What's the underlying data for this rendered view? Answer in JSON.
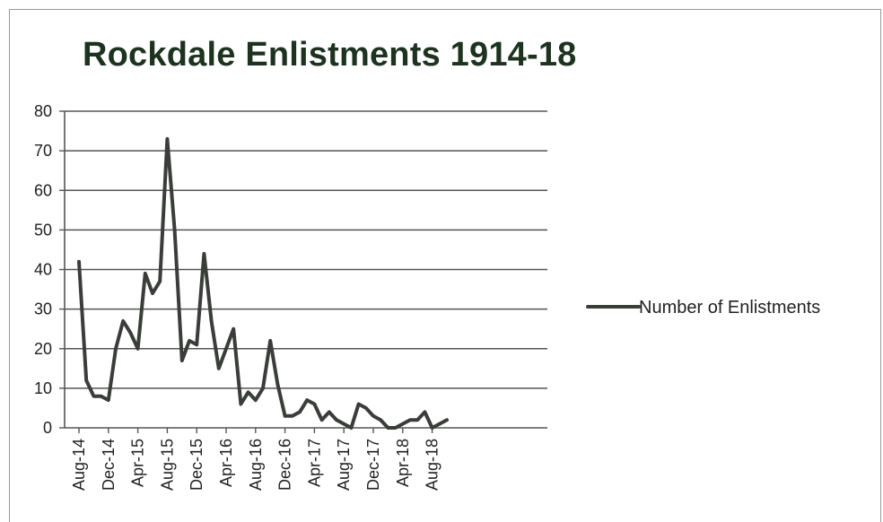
{
  "chart_data": {
    "type": "line",
    "title": "Rockdale Enlistments 1914-18",
    "xlabel": "",
    "ylabel": "",
    "ylim": [
      0,
      80
    ],
    "y_ticks": [
      0,
      10,
      20,
      30,
      40,
      50,
      60,
      70,
      80
    ],
    "x_tick_labels": [
      "Aug-14",
      "Dec-14",
      "Apr-15",
      "Aug-15",
      "Dec-15",
      "Apr-16",
      "Aug-16",
      "Dec-16",
      "Apr-17",
      "Aug-17",
      "Dec-17",
      "Apr-18",
      "Aug-18"
    ],
    "x": [
      "Aug-14",
      "Sep-14",
      "Oct-14",
      "Nov-14",
      "Dec-14",
      "Jan-15",
      "Feb-15",
      "Mar-15",
      "Apr-15",
      "May-15",
      "Jun-15",
      "Jul-15",
      "Aug-15",
      "Sep-15",
      "Oct-15",
      "Nov-15",
      "Dec-15",
      "Jan-16",
      "Feb-16",
      "Mar-16",
      "Apr-16",
      "May-16",
      "Jun-16",
      "Jul-16",
      "Aug-16",
      "Sep-16",
      "Oct-16",
      "Nov-16",
      "Dec-16",
      "Jan-17",
      "Feb-17",
      "Mar-17",
      "Apr-17",
      "May-17",
      "Jun-17",
      "Jul-17",
      "Aug-17",
      "Sep-17",
      "Oct-17",
      "Nov-17",
      "Dec-17",
      "Jan-18",
      "Feb-18",
      "Mar-18",
      "Apr-18",
      "May-18",
      "Jun-18",
      "Jul-18",
      "Aug-18",
      "Sep-18",
      "Oct-18"
    ],
    "series": [
      {
        "name": "Number of Enlistments",
        "color": "#3a3d3a",
        "values": [
          42,
          12,
          8,
          8,
          7,
          20,
          27,
          24,
          20,
          39,
          34,
          37,
          73,
          50,
          17,
          22,
          21,
          44,
          27,
          15,
          20,
          25,
          6,
          9,
          7,
          10,
          22,
          11,
          3,
          3,
          4,
          7,
          6,
          2,
          4,
          2,
          1,
          0,
          6,
          5,
          3,
          2,
          0,
          0,
          1,
          2,
          2,
          4,
          0,
          1,
          2
        ]
      }
    ],
    "grid": true,
    "legend_position": "right"
  }
}
